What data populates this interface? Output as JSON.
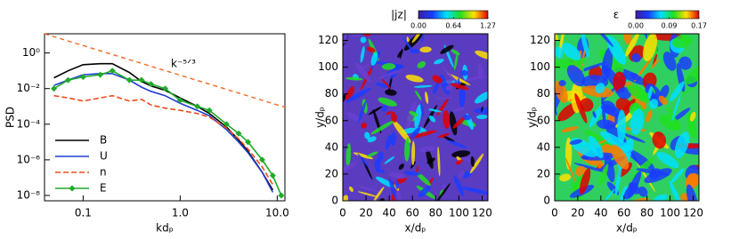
{
  "chart_data": [
    {
      "type": "line",
      "x_label": "kdₚ",
      "y_label": "PSD",
      "x_log": true,
      "y_log": true,
      "xlim": [
        0.04,
        12
      ],
      "ylim": [
        5e-09,
        12
      ],
      "xticks": [
        0.1,
        {
          "value": 1,
          "label": "1.0"
        },
        {
          "value": 10,
          "label": "10.0"
        }
      ],
      "yticks": [
        {
          "value": 1,
          "label": "10⁰"
        },
        {
          "value": 0.01,
          "label": "10⁻²"
        },
        {
          "value": 0.0001,
          "label": "10⁻⁴"
        },
        {
          "value": 1e-06,
          "label": "10⁻⁶"
        },
        {
          "value": 1e-08,
          "label": "10⁻⁸"
        }
      ],
      "x": [
        0.05,
        0.07,
        0.1,
        0.15,
        0.2,
        0.3,
        0.4,
        0.5,
        0.7,
        1.0,
        1.5,
        2,
        3,
        4,
        5,
        7,
        9,
        11
      ],
      "series": [
        {
          "name": "B",
          "color": "#000000",
          "dash": "solid",
          "values": [
            0.04,
            0.1,
            0.22,
            0.25,
            0.25,
            0.08,
            0.025,
            0.014,
            0.008,
            0.003,
            0.001,
            0.0004,
            7e-05,
            1.3e-05,
            3e-06,
            2e-07,
            2e-08,
            null
          ]
        },
        {
          "name": "U",
          "color": "#1f3fd0",
          "dash": "solid",
          "values": [
            0.015,
            0.03,
            0.06,
            0.07,
            0.07,
            0.03,
            0.012,
            0.007,
            0.004,
            0.0015,
            0.0006,
            0.0003,
            5e-05,
            1e-05,
            2.5e-06,
            2e-07,
            1.5e-08,
            null
          ]
        },
        {
          "name": "n",
          "color": "#f04a1a",
          "dash": "dashed",
          "values": [
            0.004,
            0.003,
            0.002,
            0.003,
            0.004,
            0.002,
            0.0025,
            0.0012,
            0.0008,
            0.0006,
            0.0004,
            0.00025,
            6e-05,
            1.5e-05,
            4e-06,
            4e-07,
            4e-08,
            null
          ]
        },
        {
          "name": "E",
          "color": "#1faa2a",
          "dash": "solid",
          "marker": "diamond",
          "values": [
            0.01,
            0.03,
            0.045,
            0.06,
            0.1,
            0.03,
            0.03,
            0.018,
            0.01,
            0.0022,
            0.001,
            0.0006,
            0.0001,
            3e-05,
            1e-05,
            1e-06,
            1.3e-07,
            1e-08
          ]
        }
      ],
      "reference_line": {
        "color": "#f26a22",
        "x": [
          0.04,
          12
        ],
        "values": [
          12,
          0.0009
        ]
      },
      "annotation": "k⁻⁵ᐟ³"
    },
    {
      "type": "heatmap",
      "title": "|jz|",
      "x_label": "x/dₚ",
      "y_label": "y/dₚ",
      "xlim": [
        0,
        125
      ],
      "ylim": [
        0,
        125
      ],
      "xticks": [
        0,
        20,
        40,
        60,
        80,
        100,
        120
      ],
      "yticks": [
        0,
        20,
        40,
        60,
        80,
        100,
        120
      ],
      "colorbar_ticks": [
        {
          "value": 0,
          "label": "0.00"
        },
        {
          "value": 0.64,
          "label": "0.64"
        },
        {
          "value": 1.27,
          "label": "1.27"
        }
      ]
    },
    {
      "type": "heatmap",
      "title": "ε",
      "x_label": "x/dₚ",
      "y_label": "y/dₚ",
      "xlim": [
        0,
        125
      ],
      "ylim": [
        0,
        125
      ],
      "xticks": [
        0,
        20,
        40,
        60,
        80,
        100,
        120
      ],
      "yticks": [
        0,
        20,
        40,
        60,
        80,
        100,
        120
      ],
      "colorbar_ticks": [
        {
          "value": 0,
          "label": "0.00"
        },
        {
          "value": 0.09,
          "label": "0.09"
        },
        {
          "value": 0.17,
          "label": "0.17"
        }
      ]
    }
  ]
}
